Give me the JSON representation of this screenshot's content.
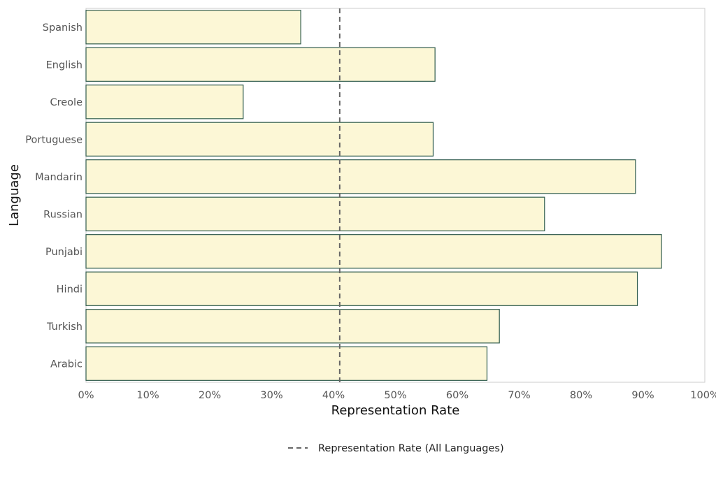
{
  "chart_data": {
    "type": "bar",
    "orientation": "horizontal",
    "categories": [
      "Spanish",
      "English",
      "Creole",
      "Portuguese",
      "Mandarin",
      "Russian",
      "Punjabi",
      "Hindi",
      "Turkish",
      "Arabic"
    ],
    "values": [
      0.347,
      0.564,
      0.254,
      0.561,
      0.888,
      0.741,
      0.93,
      0.891,
      0.668,
      0.648
    ],
    "xlabel": "Representation Rate",
    "ylabel": "Language",
    "xlim": [
      0,
      1
    ],
    "x_ticks": [
      "0%",
      "10%",
      "20%",
      "30%",
      "40%",
      "50%",
      "60%",
      "70%",
      "80%",
      "90%",
      "100%"
    ],
    "reference_line": {
      "value": 0.41,
      "name": "Representation Rate (All Languages)",
      "style": "dashed"
    },
    "legend": {
      "placement": "bottom-center",
      "entries": [
        "Representation Rate (All Languages)"
      ]
    },
    "grid": false,
    "colors": {
      "bar_fill": "#fcf7d6",
      "bar_stroke": "#2f5b4c",
      "reference_line": "#666666",
      "frame": "#cccccc"
    }
  }
}
